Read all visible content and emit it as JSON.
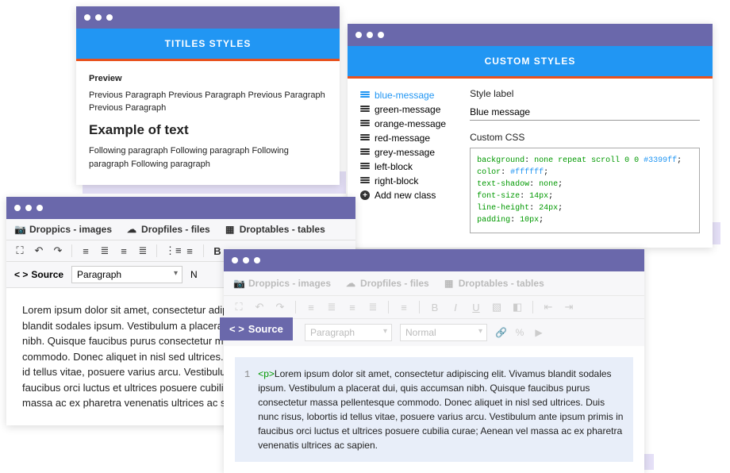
{
  "colors": {
    "titlebar": "#6a68ab",
    "blue_header": "#2196f3",
    "orange_border": "#e8521e",
    "shadow": "#e5e0f7",
    "code_bg": "#e8eef9"
  },
  "window1": {
    "header": "TITILES STYLES",
    "preview_label": "Preview",
    "prev_para": "Previous Paragraph Previous Paragraph Previous Paragraph Previous Paragraph",
    "example": "Example of text",
    "follow_para": "Following paragraph Following paragraph Following paragraph Following paragraph"
  },
  "window2": {
    "header": "CUSTOM STYLES",
    "classes": [
      "blue-message",
      "green-message",
      "orange-message",
      "red-message",
      "grey-message",
      "left-block",
      "right-block"
    ],
    "add_new": "Add new class",
    "style_label_title": "Style label",
    "style_label_value": "Blue message",
    "custom_css_title": "Custom CSS",
    "css_lines": [
      {
        "prop": "background",
        "val": "none repeat scroll 0 0 ",
        "hex": "#3399ff"
      },
      {
        "prop": "color",
        "val": "",
        "hex": "#ffffff"
      },
      {
        "prop": "text-shadow",
        "val": "none",
        "hex": ""
      },
      {
        "prop": "font-size",
        "val": "14px",
        "hex": ""
      },
      {
        "prop": "line-height",
        "val": "24px",
        "hex": ""
      },
      {
        "prop": "padding",
        "val": "10px",
        "hex": ""
      }
    ]
  },
  "editor": {
    "plugins": {
      "images": "Droppics - images",
      "files": "Dropfiles - files",
      "tables": "Droptables - tables"
    },
    "source_label": "Source",
    "paragraph": "Paragraph",
    "normal": "Normal",
    "n_label": "N",
    "lorem": "Lorem ipsum dolor sit amet, consectetur adipiscing elit. Vivamus blandit sodales ipsum. Vestibulum a placerat dui, quis accumsan nibh. Quisque faucibus purus consectetur massa pellentesque commodo. Donec aliquet in nisl sed ultrices. Duis nunc risus, lobortis id tellus vitae, posuere varius arcu. Vestibulum ante ipsum primis in faucibus orci luctus et ultrices posuere cubilia curae; Aenean vel massa ac ex pharetra venenatis ultrices ac sapien.",
    "lorem_short": "Lorem ipsum dolor sit amet, consectetur adipiscing elit. Vivamus blandit sodales ipsum. Vestibulum a placerat dui, quis accumsan nibh. Quisque faucibus purus consectetur massa pellentesque commodo. Donec aliquet in nisl sed ultrices. Duis nunc risus, lobortis id tellus vitae, posuere varius arcu. Vestibulum ante ipsum primis in faucibus orci luctus et ultrices posuere cubilia curae; Aenean vel massa ac ex pharetra venenatis ultrices ac sapien.",
    "line_no": "1",
    "p_tag": "<p>"
  }
}
